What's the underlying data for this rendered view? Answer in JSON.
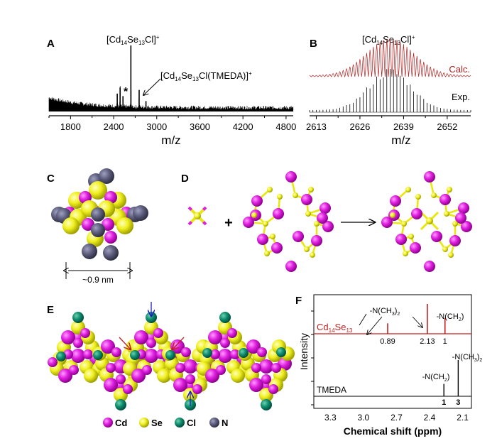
{
  "panels": {
    "A": {
      "label": "A"
    },
    "B": {
      "label": "B"
    },
    "C": {
      "label": "C",
      "scale_text": "~0.9 nm"
    },
    "D": {
      "label": "D",
      "plus": "+"
    },
    "E": {
      "label": "E"
    },
    "F": {
      "label": "F"
    }
  },
  "legend_E": [
    {
      "name": "Cd",
      "color": "#e020e0"
    },
    {
      "name": "Se",
      "color": "#f0f020"
    },
    {
      "name": "Cl",
      "color": "#109070"
    },
    {
      "name": "N",
      "color": "#606080"
    }
  ],
  "colors": {
    "calc": "#b02020",
    "exp": "#000000",
    "nmr_cluster": "#c02020",
    "arrow_blue": "#2020c0",
    "arrow_red": "#c02020"
  },
  "chart_data": [
    {
      "id": "A",
      "type": "line",
      "title": "",
      "xlabel": "m/z",
      "ylabel": "",
      "xlim": [
        1500,
        4900
      ],
      "xticks": [
        "1800",
        "2400",
        "3000",
        "3600",
        "4200",
        "4800"
      ],
      "annotations": [
        {
          "text_main": "[Cd",
          "sub1": "14",
          "mid": "Se",
          "sub2": "13",
          "end": "Cl]",
          "sup": "+",
          "x": 2640
        },
        {
          "text_main": "[Cd",
          "sub1": "14",
          "mid": "Se",
          "sub2": "13",
          "end": "Cl(TMEDA)]",
          "sup": "+",
          "x": 2755
        },
        {
          "text": "*",
          "x": 2490
        }
      ],
      "peaks": [
        {
          "x": 2450,
          "height": 0.22
        },
        {
          "x": 2490,
          "height": 0.32
        },
        {
          "x": 2530,
          "height": 0.18
        },
        {
          "x": 2640,
          "height": 1.0
        },
        {
          "x": 2755,
          "height": 0.28
        },
        {
          "x": 2850,
          "height": 0.1
        }
      ]
    },
    {
      "id": "B",
      "type": "line",
      "title_main": "[Cd",
      "title_sub1": "14",
      "title_mid": "Se",
      "title_sub2": "13",
      "title_end": "Cl]",
      "title_sup": "+",
      "xlabel": "m/z",
      "xlim": [
        2611,
        2659
      ],
      "xticks": [
        "2613",
        "2626",
        "2639",
        "2652"
      ],
      "series": [
        {
          "name": "Calc.",
          "center": 2635,
          "width": 8.5
        },
        {
          "name": "Exp.",
          "center": 2635,
          "width": 7.5
        }
      ]
    },
    {
      "id": "F",
      "type": "line",
      "xlabel": "Chemical shift (ppm)",
      "ylabel": "Intensity",
      "xlim": [
        3.45,
        2.02
      ],
      "xticks": [
        "3.3",
        "3.0",
        "2.7",
        "2.4",
        "2.1"
      ],
      "series": [
        {
          "name_main": "Cd",
          "name_sub1": "14",
          "name_mid": "Se",
          "name_sub2": "13",
          "peaks": [
            {
              "x": 2.78,
              "height": 0.35,
              "integral": "0.89"
            },
            {
              "x": 2.42,
              "height": 1.0,
              "integral": "2.13"
            },
            {
              "x": 2.26,
              "height": 0.52,
              "integral": "1"
            }
          ],
          "labels": [
            {
              "main": "-N(CH",
              "sub": "3",
              "end": ")",
              "sub2": "2"
            },
            {
              "main": "-N(CH",
              "sub": "2",
              "end": ")",
              "sub2": ""
            }
          ]
        },
        {
          "name": "TMEDA",
          "peaks": [
            {
              "x": 2.27,
              "height": 0.58,
              "integral": "1"
            },
            {
              "x": 2.14,
              "height": 1.7,
              "integral": "3"
            }
          ],
          "labels": [
            {
              "main": "-N(CH",
              "sub": "2",
              "end": ")",
              "sub2": ""
            },
            {
              "main": "-N(CH",
              "sub": "3",
              "end": ")",
              "sub2": "2"
            }
          ]
        }
      ]
    }
  ]
}
